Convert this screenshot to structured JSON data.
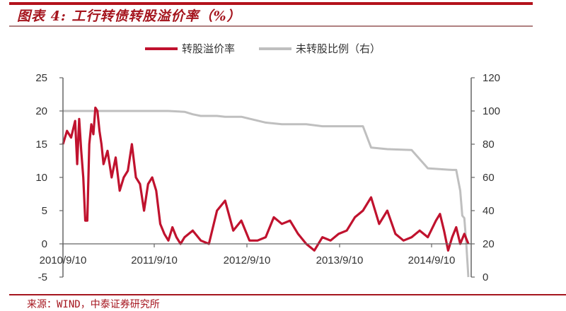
{
  "header": {
    "title": "图表 4: 工行转债转股溢价率（%）"
  },
  "legend": {
    "items": [
      {
        "label": "转股溢价率",
        "color": "#c0122e"
      },
      {
        "label": "未转股比例（右）",
        "color": "#bfbfbf"
      }
    ]
  },
  "footer": {
    "source": "来源：WIND，中泰证券研究所"
  },
  "chart_data": {
    "type": "line",
    "title": "工行转债转股溢价率（%）",
    "xlabel": "",
    "ylabel": "",
    "x_tick_labels": [
      "2010/9/10",
      "2011/9/10",
      "2012/9/10",
      "2013/9/10",
      "2014/9/10"
    ],
    "y_left": {
      "ticks": [
        -5,
        0,
        5,
        10,
        15,
        20,
        25
      ],
      "ylim": [
        -5,
        25
      ]
    },
    "y_right": {
      "ticks": [
        0,
        20,
        40,
        60,
        80,
        100,
        120
      ],
      "ylim": [
        0,
        120
      ]
    },
    "grid": false,
    "legend_position": "top",
    "series": [
      {
        "name": "转股溢价率",
        "axis": "left",
        "color": "#c0122e",
        "x_frac": [
          0.0,
          0.01,
          0.02,
          0.03,
          0.035,
          0.04,
          0.045,
          0.05,
          0.055,
          0.06,
          0.065,
          0.07,
          0.075,
          0.08,
          0.085,
          0.09,
          0.095,
          0.1,
          0.11,
          0.12,
          0.13,
          0.14,
          0.15,
          0.16,
          0.17,
          0.18,
          0.19,
          0.2,
          0.21,
          0.22,
          0.23,
          0.24,
          0.25,
          0.26,
          0.27,
          0.28,
          0.29,
          0.3,
          0.32,
          0.34,
          0.36,
          0.38,
          0.4,
          0.42,
          0.44,
          0.46,
          0.48,
          0.5,
          0.52,
          0.54,
          0.56,
          0.58,
          0.6,
          0.62,
          0.64,
          0.66,
          0.68,
          0.7,
          0.72,
          0.74,
          0.76,
          0.78,
          0.8,
          0.82,
          0.84,
          0.86,
          0.88,
          0.9,
          0.92,
          0.93,
          0.94,
          0.95,
          0.96,
          0.97,
          0.98,
          0.99,
          1.0
        ],
        "values": [
          15,
          17,
          16,
          18.5,
          12,
          18.8,
          14,
          10,
          3.5,
          3.5,
          15,
          18,
          16.5,
          20.5,
          20,
          17,
          15,
          12,
          14,
          10,
          13,
          8,
          10,
          11,
          15,
          10,
          9,
          5,
          9,
          10,
          8,
          3,
          1.5,
          0.5,
          2.5,
          1,
          0,
          1,
          2,
          0.5,
          0,
          5,
          6.5,
          2,
          3.5,
          0.5,
          0.5,
          1,
          4,
          3,
          3.5,
          1.5,
          0,
          -1,
          1,
          0.5,
          1.5,
          2,
          4,
          5,
          7,
          3,
          5,
          1.5,
          0.5,
          1,
          2,
          1,
          3.5,
          4.5,
          2,
          -1,
          1,
          2.5,
          0,
          1.5,
          0
        ]
      },
      {
        "name": "未转股比例（右）",
        "axis": "right",
        "color": "#bfbfbf",
        "x_frac": [
          0.0,
          0.26,
          0.3,
          0.32,
          0.34,
          0.38,
          0.4,
          0.44,
          0.5,
          0.54,
          0.6,
          0.64,
          0.66,
          0.7,
          0.74,
          0.76,
          0.8,
          0.86,
          0.9,
          0.96,
          0.97,
          0.98,
          0.985,
          0.99,
          0.995,
          1.0
        ],
        "values": [
          100,
          100,
          99.5,
          98,
          97,
          97,
          96.5,
          96.5,
          93,
          92,
          92,
          90.8,
          90.8,
          90.8,
          90.8,
          78,
          77,
          76.5,
          65.5,
          64.5,
          64.5,
          52,
          37,
          35.5,
          20,
          0
        ]
      }
    ]
  }
}
